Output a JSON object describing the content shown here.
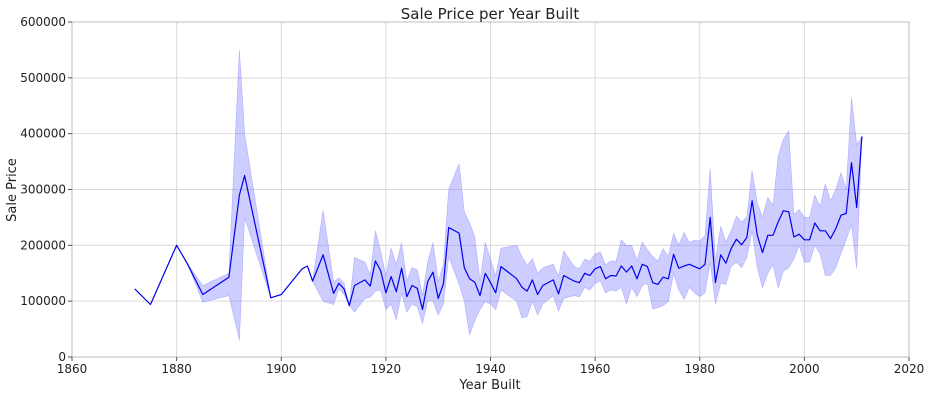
{
  "chart_data": {
    "type": "line",
    "title": "Sale Price per Year Built",
    "xlabel": "Year Built",
    "ylabel": "Sale Price",
    "xlim": [
      1860,
      2020
    ],
    "ylim": [
      0,
      600000
    ],
    "x_ticks": [
      1860,
      1880,
      1900,
      1920,
      1940,
      1960,
      1980,
      2000,
      2020
    ],
    "y_ticks": [
      0,
      100000,
      200000,
      300000,
      400000,
      500000,
      600000
    ],
    "grid": true,
    "legend": "none",
    "colors": {
      "line": "#0000ee",
      "band": "#7b7bff"
    },
    "series": [
      {
        "values": [
          [
            1872,
            122000
          ],
          [
            1875,
            94000
          ],
          [
            1880,
            200000
          ],
          [
            1882,
            168000
          ],
          [
            1885,
            112000
          ],
          [
            1890,
            143000
          ],
          [
            1892,
            290000
          ],
          [
            1893,
            325000
          ],
          [
            1898,
            106000
          ],
          [
            1900,
            112000
          ],
          [
            1904,
            158000
          ],
          [
            1905,
            163000
          ],
          [
            1906,
            136000
          ],
          [
            1908,
            183000
          ],
          [
            1910,
            114000
          ],
          [
            1911,
            132000
          ],
          [
            1912,
            122000
          ],
          [
            1913,
            92000
          ],
          [
            1914,
            128000
          ],
          [
            1916,
            138000
          ],
          [
            1917,
            127000
          ],
          [
            1918,
            172000
          ],
          [
            1919,
            155000
          ],
          [
            1920,
            115000
          ],
          [
            1921,
            144000
          ],
          [
            1922,
            117000
          ],
          [
            1923,
            159000
          ],
          [
            1924,
            108000
          ],
          [
            1925,
            128000
          ],
          [
            1926,
            123000
          ],
          [
            1927,
            85000
          ],
          [
            1928,
            135000
          ],
          [
            1929,
            152000
          ],
          [
            1930,
            105000
          ],
          [
            1931,
            131000
          ],
          [
            1932,
            232000
          ],
          [
            1934,
            222000
          ],
          [
            1935,
            160000
          ],
          [
            1936,
            140000
          ],
          [
            1937,
            134000
          ],
          [
            1938,
            110000
          ],
          [
            1939,
            150000
          ],
          [
            1940,
            133000
          ],
          [
            1941,
            115000
          ],
          [
            1942,
            162000
          ],
          [
            1945,
            140000
          ],
          [
            1946,
            125000
          ],
          [
            1947,
            118000
          ],
          [
            1948,
            138000
          ],
          [
            1949,
            112000
          ],
          [
            1950,
            128000
          ],
          [
            1952,
            138000
          ],
          [
            1953,
            113000
          ],
          [
            1954,
            146000
          ],
          [
            1956,
            136000
          ],
          [
            1957,
            133000
          ],
          [
            1958,
            150000
          ],
          [
            1959,
            146000
          ],
          [
            1960,
            158000
          ],
          [
            1961,
            162000
          ],
          [
            1962,
            140000
          ],
          [
            1963,
            146000
          ],
          [
            1964,
            145000
          ],
          [
            1965,
            163000
          ],
          [
            1966,
            152000
          ],
          [
            1967,
            163000
          ],
          [
            1968,
            140000
          ],
          [
            1969,
            166000
          ],
          [
            1970,
            162000
          ],
          [
            1971,
            133000
          ],
          [
            1972,
            130000
          ],
          [
            1973,
            143000
          ],
          [
            1974,
            140000
          ],
          [
            1975,
            184000
          ],
          [
            1976,
            159000
          ],
          [
            1977,
            163000
          ],
          [
            1978,
            166000
          ],
          [
            1979,
            162000
          ],
          [
            1980,
            158000
          ],
          [
            1981,
            166000
          ],
          [
            1982,
            250000
          ],
          [
            1983,
            133000
          ],
          [
            1984,
            183000
          ],
          [
            1985,
            168000
          ],
          [
            1986,
            194000
          ],
          [
            1987,
            211000
          ],
          [
            1988,
            201000
          ],
          [
            1989,
            214000
          ],
          [
            1990,
            280000
          ],
          [
            1991,
            218000
          ],
          [
            1992,
            187000
          ],
          [
            1993,
            218000
          ],
          [
            1994,
            218000
          ],
          [
            1995,
            242000
          ],
          [
            1996,
            262000
          ],
          [
            1997,
            260000
          ],
          [
            1998,
            215000
          ],
          [
            1999,
            220000
          ],
          [
            2000,
            210000
          ],
          [
            2001,
            210000
          ],
          [
            2002,
            240000
          ],
          [
            2003,
            226000
          ],
          [
            2004,
            226000
          ],
          [
            2005,
            212000
          ],
          [
            2006,
            230000
          ],
          [
            2007,
            254000
          ],
          [
            2008,
            257000
          ],
          [
            2009,
            348000
          ],
          [
            2010,
            268000
          ],
          [
            2011,
            395000
          ]
        ],
        "band": [
          [
            1872,
            122000,
            122000
          ],
          [
            1875,
            94000,
            94000
          ],
          [
            1880,
            200000,
            200000
          ],
          [
            1882,
            168000,
            168000
          ],
          [
            1885,
            98000,
            128000
          ],
          [
            1890,
            110000,
            150000
          ],
          [
            1892,
            30000,
            550000
          ],
          [
            1893,
            250000,
            400000
          ],
          [
            1898,
            106000,
            106000
          ],
          [
            1900,
            112000,
            112000
          ],
          [
            1904,
            158000,
            158000
          ],
          [
            1905,
            163000,
            163000
          ],
          [
            1906,
            136000,
            136000
          ],
          [
            1908,
            100000,
            263000
          ],
          [
            1910,
            94000,
            134000
          ],
          [
            1911,
            122000,
            142000
          ],
          [
            1912,
            112000,
            132000
          ],
          [
            1913,
            92000,
            92000
          ],
          [
            1914,
            80000,
            178000
          ],
          [
            1916,
            105000,
            170000
          ],
          [
            1917,
            107000,
            147000
          ],
          [
            1918,
            118000,
            226000
          ],
          [
            1919,
            120000,
            190000
          ],
          [
            1920,
            85000,
            145000
          ],
          [
            1921,
            95000,
            195000
          ],
          [
            1922,
            67000,
            165000
          ],
          [
            1923,
            115000,
            205000
          ],
          [
            1924,
            80000,
            136000
          ],
          [
            1925,
            95000,
            160000
          ],
          [
            1926,
            90000,
            156000
          ],
          [
            1927,
            60000,
            110000
          ],
          [
            1928,
            100000,
            170000
          ],
          [
            1929,
            100000,
            205000
          ],
          [
            1930,
            75000,
            135000
          ],
          [
            1931,
            95000,
            165000
          ],
          [
            1932,
            180000,
            300000
          ],
          [
            1934,
            130000,
            346000
          ],
          [
            1935,
            100000,
            260000
          ],
          [
            1936,
            40000,
            240000
          ],
          [
            1937,
            65000,
            215000
          ],
          [
            1938,
            85000,
            135000
          ],
          [
            1939,
            100000,
            205000
          ],
          [
            1940,
            95000,
            175000
          ],
          [
            1941,
            85000,
            145000
          ],
          [
            1942,
            120000,
            195000
          ],
          [
            1945,
            100000,
            200000
          ],
          [
            1946,
            70000,
            180000
          ],
          [
            1947,
            72000,
            164000
          ],
          [
            1948,
            100000,
            176000
          ],
          [
            1949,
            75000,
            150000
          ],
          [
            1950,
            95000,
            160000
          ],
          [
            1952,
            110000,
            166000
          ],
          [
            1953,
            82000,
            144000
          ],
          [
            1954,
            105000,
            190000
          ],
          [
            1956,
            110000,
            162000
          ],
          [
            1957,
            108000,
            158000
          ],
          [
            1958,
            125000,
            175000
          ],
          [
            1959,
            120000,
            172000
          ],
          [
            1960,
            132000,
            184000
          ],
          [
            1961,
            136000,
            188000
          ],
          [
            1962,
            115000,
            165000
          ],
          [
            1963,
            120000,
            172000
          ],
          [
            1964,
            118000,
            172000
          ],
          [
            1965,
            125000,
            210000
          ],
          [
            1966,
            95000,
            200000
          ],
          [
            1967,
            125000,
            200000
          ],
          [
            1968,
            108000,
            172000
          ],
          [
            1969,
            128000,
            206000
          ],
          [
            1970,
            132000,
            192000
          ],
          [
            1971,
            86000,
            180000
          ],
          [
            1972,
            88000,
            172000
          ],
          [
            1973,
            92000,
            194000
          ],
          [
            1974,
            100000,
            180000
          ],
          [
            1975,
            150000,
            222000
          ],
          [
            1976,
            120000,
            200000
          ],
          [
            1977,
            103000,
            223000
          ],
          [
            1978,
            125000,
            205000
          ],
          [
            1979,
            115000,
            209000
          ],
          [
            1980,
            108000,
            208000
          ],
          [
            1981,
            115000,
            217000
          ],
          [
            1982,
            170000,
            337000
          ],
          [
            1983,
            95000,
            171000
          ],
          [
            1984,
            132000,
            234000
          ],
          [
            1985,
            130000,
            206000
          ],
          [
            1986,
            162000,
            226000
          ],
          [
            1987,
            170000,
            252000
          ],
          [
            1988,
            160000,
            242000
          ],
          [
            1989,
            178000,
            250000
          ],
          [
            1990,
            226000,
            334000
          ],
          [
            1991,
            160000,
            276000
          ],
          [
            1992,
            124000,
            250000
          ],
          [
            1993,
            150000,
            286000
          ],
          [
            1994,
            165000,
            271000
          ],
          [
            1995,
            124000,
            360000
          ],
          [
            1996,
            154000,
            390000
          ],
          [
            1997,
            160000,
            405000
          ],
          [
            1998,
            175000,
            255000
          ],
          [
            1999,
            200000,
            264000
          ],
          [
            2000,
            170000,
            250000
          ],
          [
            2001,
            170000,
            250000
          ],
          [
            2002,
            200000,
            290000
          ],
          [
            2003,
            185000,
            270000
          ],
          [
            2004,
            146000,
            310000
          ],
          [
            2005,
            146000,
            280000
          ],
          [
            2006,
            160000,
            300000
          ],
          [
            2007,
            186000,
            330000
          ],
          [
            2008,
            210000,
            300000
          ],
          [
            2009,
            237000,
            464000
          ],
          [
            2010,
            158000,
            380000
          ],
          [
            2011,
            395000,
            395000
          ]
        ]
      }
    ]
  }
}
